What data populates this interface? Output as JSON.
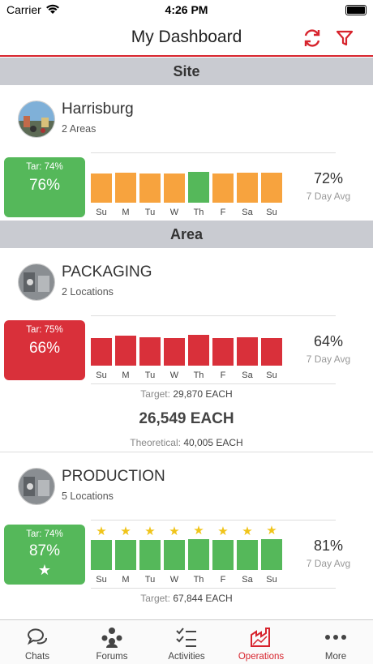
{
  "status_bar": {
    "carrier": "Carrier",
    "time": "4:26 PM"
  },
  "nav": {
    "title": "My Dashboard"
  },
  "sections": {
    "site": "Site",
    "area": "Area"
  },
  "site": {
    "name": "Harrisburg",
    "subtitle": "2 Areas",
    "target_label": "Tar: 74%",
    "current": "76%",
    "status": "green",
    "avg_value": "72%",
    "avg_label": "7 Day Avg",
    "days": [
      "Su",
      "M",
      "Tu",
      "W",
      "Th",
      "F",
      "Sa",
      "Su"
    ],
    "bar_levels": [
      0.9,
      0.92,
      0.9,
      0.9,
      0.95,
      0.9,
      0.92,
      0.92
    ],
    "bar_colors": [
      "#f7a33e",
      "#f7a33e",
      "#f7a33e",
      "#f7a33e",
      "#55b85a",
      "#f7a33e",
      "#f7a33e",
      "#f7a33e"
    ]
  },
  "areas": [
    {
      "name": "PACKAGING",
      "subtitle": "2 Locations",
      "target_label": "Tar: 75%",
      "current": "66%",
      "status": "red",
      "avg_value": "64%",
      "avg_label": "7 Day Avg",
      "days": [
        "Su",
        "M",
        "Tu",
        "W",
        "Th",
        "F",
        "Sa",
        "Su"
      ],
      "bar_levels": [
        0.84,
        0.92,
        0.88,
        0.84,
        0.94,
        0.86,
        0.88,
        0.86
      ],
      "bar_color": "#d9303a",
      "target_text_label": "Target:",
      "target_text_value": "29,870 EACH",
      "actual": "26,549 EACH",
      "theoretical_label": "Theoretical:",
      "theoretical_value": "40,005 EACH"
    },
    {
      "name": "PRODUCTION",
      "subtitle": "5 Locations",
      "target_label": "Tar: 74%",
      "current": "87%",
      "status": "green",
      "avg_value": "81%",
      "avg_label": "7 Day Avg",
      "days": [
        "Su",
        "M",
        "Tu",
        "W",
        "Th",
        "F",
        "Sa",
        "Su"
      ],
      "bar_levels": [
        0.92,
        0.92,
        0.92,
        0.92,
        0.94,
        0.92,
        0.92,
        0.96
      ],
      "bar_color": "#55b85a",
      "target_text_label": "Target:",
      "target_text_value": "67,844 EACH"
    }
  ],
  "tabs": [
    {
      "label": "Chats",
      "icon": "chat-icon",
      "active": false
    },
    {
      "label": "Forums",
      "icon": "forums-icon",
      "active": false
    },
    {
      "label": "Activities",
      "icon": "activities-icon",
      "active": false
    },
    {
      "label": "Operations",
      "icon": "operations-icon",
      "active": true
    },
    {
      "label": "More",
      "icon": "more-icon",
      "active": false
    }
  ],
  "colors": {
    "accent": "#d7242d",
    "green": "#55b85a",
    "red": "#d9303a",
    "orange": "#f7a33e",
    "star": "#f0c419"
  }
}
